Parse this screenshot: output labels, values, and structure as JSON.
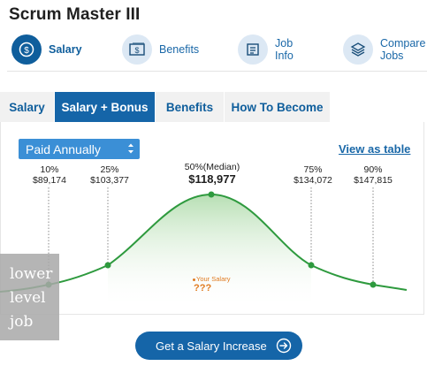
{
  "page": {
    "title": "Scrum Master III"
  },
  "top_nav": [
    {
      "label": "Salary",
      "icon": "dollar-coin-icon"
    },
    {
      "label": "Benefits",
      "icon": "dollar-bill-icon"
    },
    {
      "label": "Job\nInfo",
      "icon": "document-icon"
    },
    {
      "label": "Compare\nJobs",
      "icon": "stack-icon"
    }
  ],
  "tabs": [
    {
      "label": "Salary"
    },
    {
      "label": "Salary + Bonus"
    },
    {
      "label": "Benefits"
    },
    {
      "label": "How To Become"
    }
  ],
  "controls": {
    "period_select": "Paid Annually",
    "view_table_link": "View as table"
  },
  "percentiles": [
    {
      "pct": "10%",
      "value": "$89,174"
    },
    {
      "pct": "25%",
      "value": "$103,377"
    },
    {
      "pct": "50%(Median)",
      "value": "$118,977"
    },
    {
      "pct": "75%",
      "value": "$134,072"
    },
    {
      "pct": "90%",
      "value": "$147,815"
    }
  ],
  "your_salary": {
    "label": "Your Salary",
    "value": "???"
  },
  "watermark": {
    "text": "lower level job"
  },
  "cta": {
    "label": "Get a Salary Increase"
  },
  "colors": {
    "brand_blue": "#1565a8",
    "curve_green": "#2e9a3e",
    "accent_orange": "#e07b20"
  }
}
